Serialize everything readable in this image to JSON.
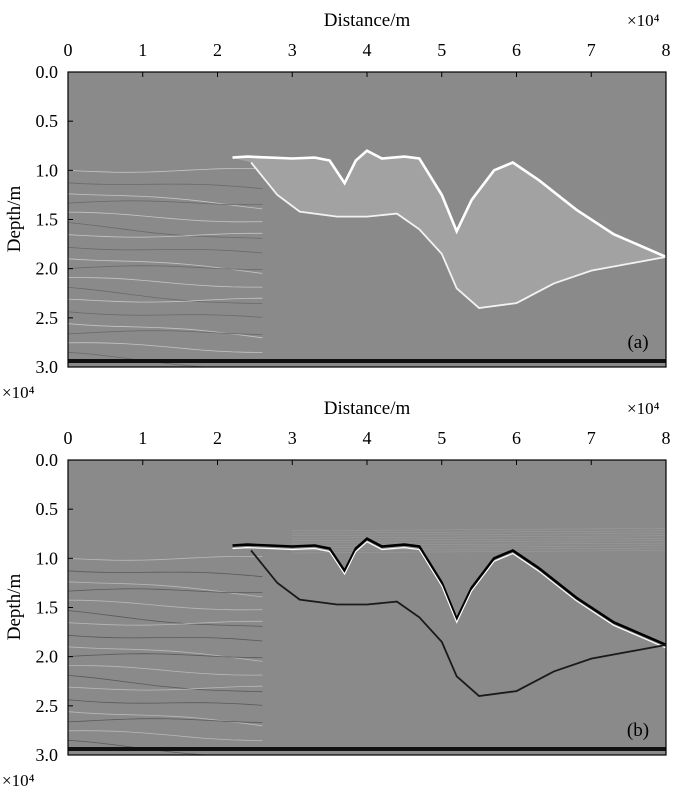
{
  "chart_data": [
    {
      "type": "heatmap",
      "panel_label": "(a)",
      "xlabel": "Distance/m",
      "ylabel": "Depth/m",
      "x_scale_label": "×10⁴",
      "y_scale_label": "×10⁴",
      "xlim": [
        0,
        8
      ],
      "ylim": [
        3.0,
        0.0
      ],
      "x_ticks": [
        "0",
        "1",
        "2",
        "3",
        "4",
        "5",
        "6",
        "7",
        "8"
      ],
      "y_ticks": [
        "0.0",
        "0.5",
        "1.0",
        "1.5",
        "2.0",
        "2.5",
        "3.0"
      ],
      "colormap": "gray",
      "salt_top": [
        [
          2.2,
          0.87
        ],
        [
          2.4,
          0.86
        ],
        [
          2.7,
          0.87
        ],
        [
          3.0,
          0.88
        ],
        [
          3.3,
          0.87
        ],
        [
          3.5,
          0.9
        ],
        [
          3.7,
          1.13
        ],
        [
          3.85,
          0.9
        ],
        [
          4.0,
          0.8
        ],
        [
          4.2,
          0.88
        ],
        [
          4.5,
          0.86
        ],
        [
          4.7,
          0.88
        ],
        [
          5.0,
          1.25
        ],
        [
          5.2,
          1.62
        ],
        [
          5.4,
          1.3
        ],
        [
          5.7,
          1.0
        ],
        [
          5.95,
          0.92
        ],
        [
          6.3,
          1.1
        ],
        [
          6.8,
          1.4
        ],
        [
          7.3,
          1.65
        ],
        [
          8.0,
          1.88
        ]
      ],
      "salt_base": [
        [
          2.45,
          0.92
        ],
        [
          2.8,
          1.25
        ],
        [
          3.1,
          1.42
        ],
        [
          3.6,
          1.47
        ],
        [
          4.0,
          1.47
        ],
        [
          4.4,
          1.44
        ],
        [
          4.7,
          1.6
        ],
        [
          5.0,
          1.85
        ],
        [
          5.2,
          2.2
        ],
        [
          5.5,
          2.4
        ],
        [
          6.0,
          2.35
        ],
        [
          6.5,
          2.15
        ],
        [
          7.0,
          2.02
        ],
        [
          7.5,
          1.95
        ],
        [
          8.0,
          1.88
        ]
      ]
    },
    {
      "type": "heatmap",
      "panel_label": "(b)",
      "xlabel": "Distance/m",
      "ylabel": "Depth/m",
      "x_scale_label": "×10⁴",
      "y_scale_label": "×10⁴",
      "xlim": [
        0,
        8
      ],
      "ylim": [
        3.0,
        0.0
      ],
      "x_ticks": [
        "0",
        "1",
        "2",
        "3",
        "4",
        "5",
        "6",
        "7",
        "8"
      ],
      "y_ticks": [
        "0.0",
        "0.5",
        "1.0",
        "1.5",
        "2.0",
        "2.5",
        "3.0"
      ],
      "colormap": "gray",
      "salt_top": [
        [
          2.2,
          0.87
        ],
        [
          2.4,
          0.86
        ],
        [
          2.7,
          0.87
        ],
        [
          3.0,
          0.88
        ],
        [
          3.3,
          0.87
        ],
        [
          3.5,
          0.9
        ],
        [
          3.7,
          1.13
        ],
        [
          3.85,
          0.9
        ],
        [
          4.0,
          0.8
        ],
        [
          4.2,
          0.88
        ],
        [
          4.5,
          0.86
        ],
        [
          4.7,
          0.88
        ],
        [
          5.0,
          1.25
        ],
        [
          5.2,
          1.62
        ],
        [
          5.4,
          1.3
        ],
        [
          5.7,
          1.0
        ],
        [
          5.95,
          0.92
        ],
        [
          6.3,
          1.1
        ],
        [
          6.8,
          1.4
        ],
        [
          7.3,
          1.65
        ],
        [
          8.0,
          1.88
        ]
      ],
      "salt_base": [
        [
          2.45,
          0.92
        ],
        [
          2.8,
          1.25
        ],
        [
          3.1,
          1.42
        ],
        [
          3.6,
          1.47
        ],
        [
          4.0,
          1.47
        ],
        [
          4.4,
          1.44
        ],
        [
          4.7,
          1.6
        ],
        [
          5.0,
          1.85
        ],
        [
          5.2,
          2.2
        ],
        [
          5.5,
          2.4
        ],
        [
          6.0,
          2.35
        ],
        [
          6.5,
          2.15
        ],
        [
          7.0,
          2.02
        ],
        [
          7.5,
          1.95
        ],
        [
          8.0,
          1.88
        ]
      ]
    }
  ]
}
